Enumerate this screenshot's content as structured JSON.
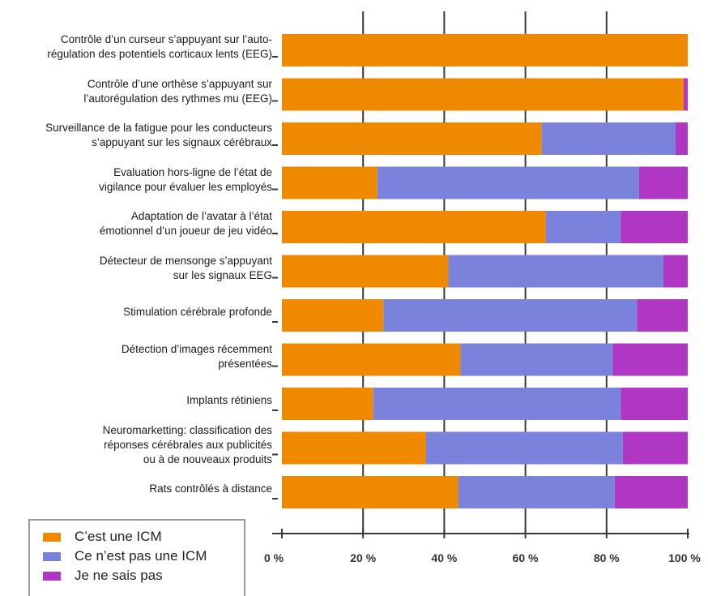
{
  "chart_data": {
    "type": "bar",
    "orientation": "horizontal",
    "stacked": true,
    "categories": [
      [
        "Contrôle d’un curseur s’appuyant sur l’auto-",
        "régulation des potentiels corticaux lents (EEG)"
      ],
      [
        "Contrôle d’une orthèse s’appuyant sur",
        "l’autorégulation des rythmes mu (EEG)"
      ],
      [
        "Surveillance de la fatigue pour les conducteurs",
        "s’appuyant sur les signaux cérébraux"
      ],
      [
        "Evaluation hors-ligne de l’état de",
        "vigilance pour évaluer les employés"
      ],
      [
        "Adaptation de l’avatar à l’état",
        "émotionnel d’un joueur de jeu vidéo"
      ],
      [
        "Détecteur de mensonge s’appuyant",
        "sur les signaux EEG"
      ],
      [
        "Stimulation cérébrale profonde"
      ],
      [
        "Détection d’images récemment",
        "présentées"
      ],
      [
        "Implants rétiniens"
      ],
      [
        "Neuromarketting: classification des",
        "réponses cérébrales aux publicités",
        "ou à de nouveaux produits"
      ],
      [
        "Rats contrôlés à distance"
      ]
    ],
    "series": [
      {
        "name": "C’est une ICM",
        "color": "#ef8a00",
        "values": [
          100,
          99,
          64,
          23.5,
          65,
          41,
          25,
          44,
          22.5,
          35.5,
          43.5
        ]
      },
      {
        "name": "Ce n’est pas une ICM",
        "color": "#7a82db",
        "values": [
          0,
          0,
          33,
          64.5,
          18.5,
          53,
          62.5,
          37.5,
          61,
          48.5,
          38.5
        ]
      },
      {
        "name": "Je ne sais pas",
        "color": "#b036c4",
        "values": [
          0,
          1,
          3,
          12,
          16.5,
          6,
          12.5,
          18.5,
          16.5,
          16,
          18
        ]
      }
    ],
    "x_ticks": [
      "0 %",
      "20 %",
      "40 %",
      "60 %",
      "80 %",
      "100 %"
    ],
    "xlim": [
      0,
      100
    ],
    "grid": true,
    "legend_position": "bottom-left"
  }
}
